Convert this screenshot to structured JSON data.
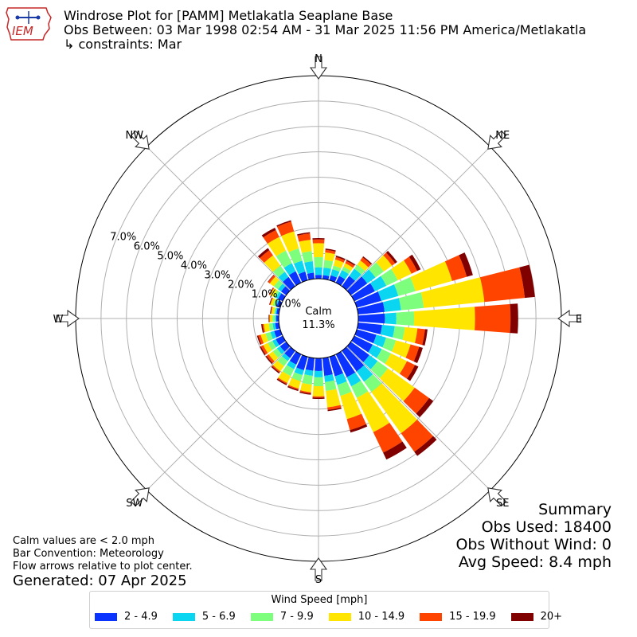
{
  "header": {
    "title": "Windrose Plot for [PAMM] Metlakatla Seaplane Base",
    "obs_between": "Obs Between: 03 Mar 1998 02:54 AM - 31 Mar 2025 11:56 PM America/Metlakatla",
    "constraints": "↳ constraints: Mar",
    "logo_text": "IEM"
  },
  "footer": {
    "calm_note": "Calm values are < 2.0 mph",
    "bar_convention": "Bar Convention: Meteorology",
    "flow_note": "Flow arrows relative to plot center.",
    "generated": "Generated: 07 Apr 2025"
  },
  "summary": {
    "title": "Summary",
    "obs_used": "Obs Used: 18400",
    "obs_without_wind": "Obs Without Wind: 0",
    "avg_speed": "Avg Speed: 8.4 mph"
  },
  "legend": {
    "title": "Wind Speed [mph]",
    "items": [
      {
        "label": "2 - 4.9",
        "color": "#0a33ff"
      },
      {
        "label": "5 - 6.9",
        "color": "#0ad6f2"
      },
      {
        "label": "7 - 9.9",
        "color": "#7dff7d"
      },
      {
        "label": "10 - 14.9",
        "color": "#ffe500"
      },
      {
        "label": "15 - 19.9",
        "color": "#ff4400"
      },
      {
        "label": "20+",
        "color": "#800000"
      }
    ]
  },
  "chart_data": {
    "type": "windrose",
    "calm_label": "Calm",
    "calm_value": "11.3%",
    "radial_ticks": [
      "0.0%",
      "1.0%",
      "2.0%",
      "3.0%",
      "4.0%",
      "5.0%",
      "6.0%",
      "7.0%"
    ],
    "radial_max": 8.0,
    "compass_labels": [
      {
        "label": "N",
        "angle": 0
      },
      {
        "label": "NE",
        "angle": 45
      },
      {
        "label": "E",
        "angle": 90
      },
      {
        "label": "SE",
        "angle": 135
      },
      {
        "label": "S",
        "angle": 180
      },
      {
        "label": "SW",
        "angle": 225
      },
      {
        "label": "W",
        "angle": 270
      },
      {
        "label": "NW",
        "angle": 315
      }
    ],
    "speed_bins": [
      "2 - 4.9",
      "5 - 6.9",
      "7 - 9.9",
      "10 - 14.9",
      "15 - 19.9",
      "20+"
    ],
    "directions": [
      0,
      10,
      20,
      30,
      40,
      50,
      60,
      70,
      80,
      90,
      100,
      110,
      120,
      130,
      140,
      150,
      160,
      170,
      180,
      190,
      200,
      210,
      220,
      230,
      240,
      250,
      260,
      270,
      280,
      290,
      300,
      310,
      320,
      330,
      340,
      350
    ],
    "cumulative": [
      [
        0.15,
        0.45,
        0.85,
        1.4,
        1.55,
        1.6
      ],
      [
        0.15,
        0.45,
        0.75,
        1.05,
        1.15,
        1.2
      ],
      [
        0.2,
        0.45,
        0.6,
        0.85,
        0.95,
        1.0
      ],
      [
        0.3,
        0.55,
        0.7,
        0.85,
        0.95,
        1.0
      ],
      [
        0.5,
        0.85,
        1.05,
        1.25,
        1.4,
        1.45
      ],
      [
        0.8,
        1.2,
        1.6,
        2.0,
        2.15,
        2.25
      ],
      [
        0.9,
        1.4,
        1.9,
        2.5,
        2.75,
        2.9
      ],
      [
        1.0,
        1.7,
        2.4,
        3.9,
        4.5,
        4.75
      ],
      [
        1.05,
        1.7,
        2.6,
        5.0,
        6.6,
        7.0
      ],
      [
        1.05,
        1.5,
        2.2,
        4.6,
        6.0,
        6.3
      ],
      [
        0.95,
        1.45,
        1.85,
        2.35,
        2.65,
        2.75
      ],
      [
        0.8,
        1.2,
        1.6,
        2.2,
        2.55,
        2.7
      ],
      [
        0.8,
        1.2,
        1.6,
        2.3,
        2.65,
        2.8
      ],
      [
        0.9,
        1.3,
        1.8,
        3.1,
        3.8,
        4.0
      ],
      [
        1.0,
        1.5,
        2.0,
        4.0,
        4.9,
        5.1
      ],
      [
        1.0,
        1.4,
        1.9,
        3.4,
        4.3,
        4.6
      ],
      [
        0.8,
        1.15,
        1.6,
        2.55,
        3.0,
        3.1
      ],
      [
        0.7,
        0.95,
        1.3,
        1.95,
        2.05,
        2.1
      ],
      [
        0.5,
        0.75,
        1.1,
        1.5,
        1.55,
        1.6
      ],
      [
        0.5,
        0.7,
        1.05,
        1.35,
        1.4,
        1.45
      ],
      [
        0.55,
        0.75,
        1.0,
        1.3,
        1.35,
        1.4
      ],
      [
        0.45,
        0.65,
        0.95,
        1.25,
        1.3,
        1.35
      ],
      [
        0.35,
        0.5,
        0.75,
        1.0,
        1.05,
        1.1
      ],
      [
        0.3,
        0.45,
        0.65,
        0.85,
        0.95,
        1.0
      ],
      [
        0.3,
        0.45,
        0.65,
        0.85,
        0.95,
        1.0
      ],
      [
        0.25,
        0.4,
        0.6,
        0.8,
        0.9,
        0.95
      ],
      [
        0.15,
        0.25,
        0.4,
        0.6,
        0.65,
        0.7
      ],
      [
        0.1,
        0.15,
        0.25,
        0.35,
        0.38,
        0.4
      ],
      [
        0.1,
        0.15,
        0.2,
        0.3,
        0.32,
        0.35
      ],
      [
        0.15,
        0.2,
        0.3,
        0.4,
        0.42,
        0.45
      ],
      [
        0.2,
        0.3,
        0.4,
        0.55,
        0.58,
        0.6
      ],
      [
        0.25,
        0.4,
        0.6,
        0.8,
        0.88,
        0.9
      ],
      [
        0.45,
        0.7,
        1.0,
        1.5,
        1.75,
        1.85
      ],
      [
        0.5,
        0.85,
        1.4,
        2.0,
        2.3,
        2.4
      ],
      [
        0.35,
        0.8,
        1.3,
        2.0,
        2.4,
        2.45
      ],
      [
        0.25,
        0.7,
        1.1,
        1.55,
        1.8,
        1.85
      ]
    ]
  }
}
